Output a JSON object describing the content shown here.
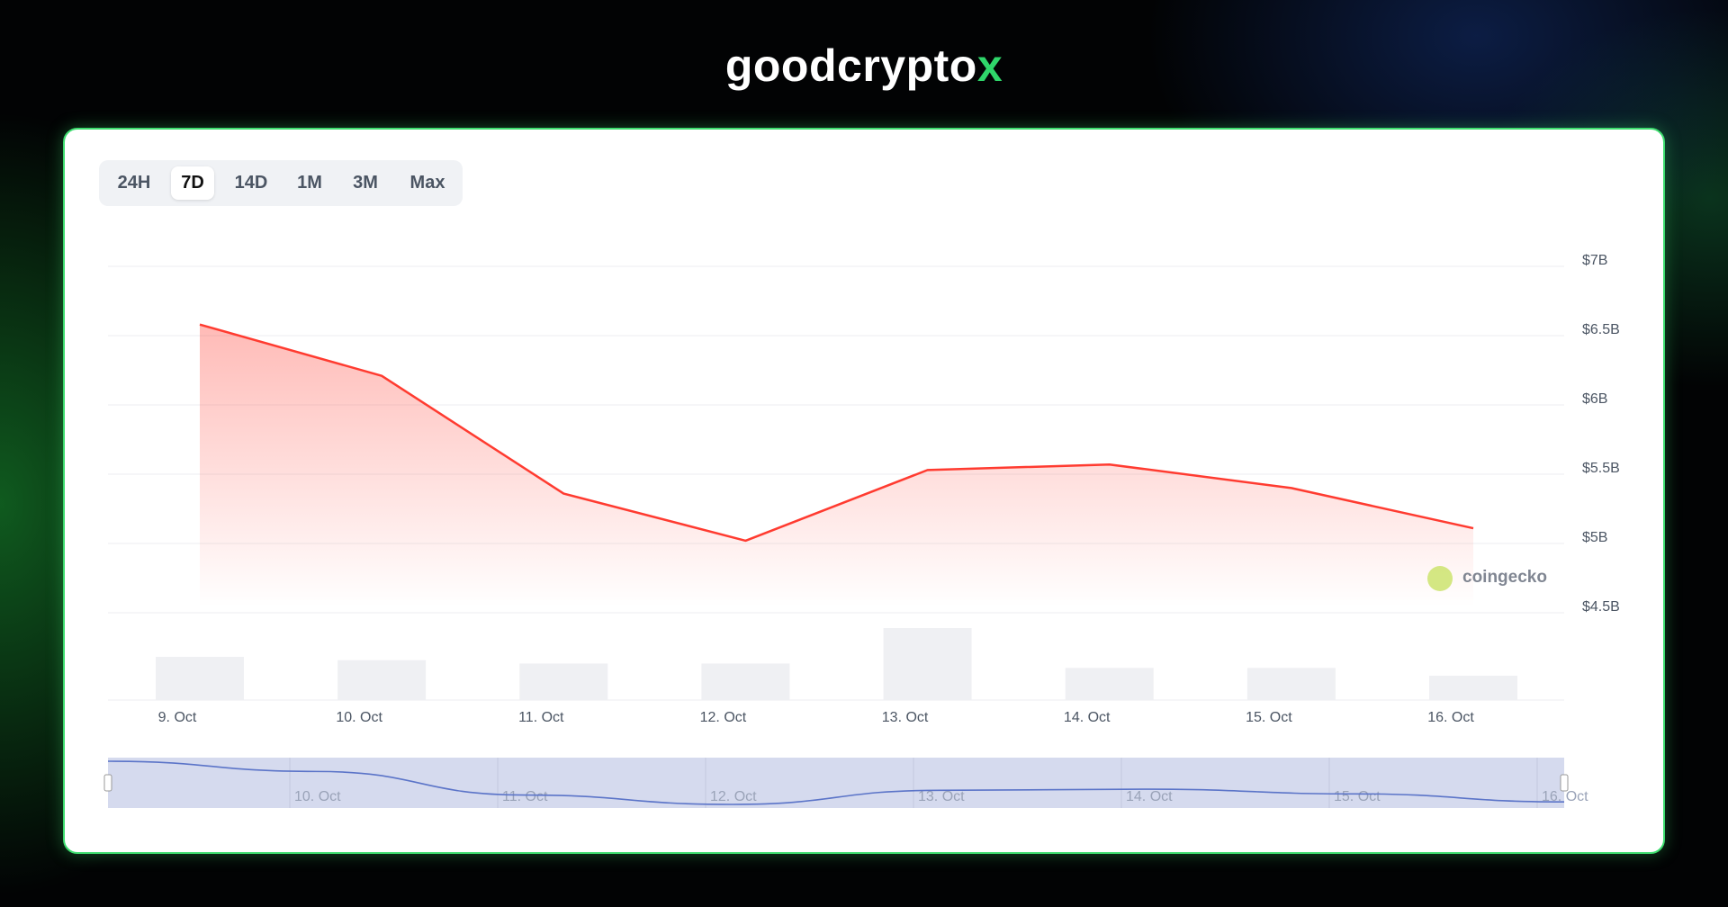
{
  "header": {
    "logo": "goodcrypto",
    "logo_mark": "x"
  },
  "tabs": [
    "24H",
    "7D",
    "14D",
    "1M",
    "3M",
    "Max"
  ],
  "active_tab": 1,
  "watermark": "coingecko",
  "chart_data": {
    "type": "line",
    "categories": [
      "9. Oct",
      "10. Oct",
      "11. Oct",
      "12. Oct",
      "13. Oct",
      "14. Oct",
      "15. Oct",
      "16. Oct"
    ],
    "values": [
      6580000000,
      6210000000,
      5360000000,
      5020000000,
      5530000000,
      5570000000,
      5400000000,
      5110000000
    ],
    "volume": [
      39,
      36,
      33,
      33,
      65,
      29,
      29,
      22
    ],
    "color": "#ff3b30",
    "volume_color": "#eff0f3",
    "navigator_color": "#5b74c8",
    "ylim": [
      4500000000,
      7000000000
    ],
    "yticks": [
      {
        "value": 4500000000,
        "label": "$4.5B"
      },
      {
        "value": 5000000000,
        "label": "$5B"
      },
      {
        "value": 5500000000,
        "label": "$5.5B"
      },
      {
        "value": 6000000000,
        "label": "$6B"
      },
      {
        "value": 6500000000,
        "label": "$6.5B"
      },
      {
        "value": 7000000000,
        "label": "$7B"
      }
    ],
    "grid": true
  }
}
